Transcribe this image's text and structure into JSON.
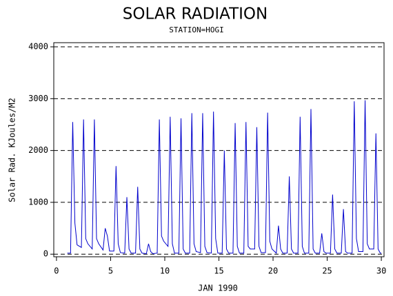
{
  "chart_data": {
    "type": "line",
    "title": "SOLAR RADIATION",
    "subtitle": "STATION=HOGI",
    "x_label": "JAN 1990",
    "y_label": "Solar Rad. KJoules/M2",
    "xlim": [
      -0.25,
      30.25
    ],
    "xticks": [
      0,
      5,
      10,
      15,
      20,
      25,
      30
    ],
    "ylim": [
      -50,
      4080
    ],
    "yticks": [
      0,
      1000,
      2000,
      3000,
      4000
    ],
    "grid": true,
    "series": [
      {
        "name": "Solar Rad",
        "color": "#0000cc",
        "x": [
          1,
          1.3,
          1.5,
          1.7,
          1.9,
          2.3,
          2.5,
          2.7,
          2.9,
          3.3,
          3.5,
          3.7,
          3.9,
          4.3,
          4.5,
          4.7,
          4.9,
          5.3,
          5.5,
          5.7,
          5.9,
          6.3,
          6.5,
          6.7,
          6.9,
          7.3,
          7.5,
          7.7,
          7.9,
          8.3,
          8.5,
          8.7,
          8.9,
          9.3,
          9.5,
          9.7,
          9.9,
          10.3,
          10.5,
          10.7,
          10.9,
          11.3,
          11.5,
          11.7,
          11.9,
          12.3,
          12.5,
          12.7,
          12.9,
          13.3,
          13.5,
          13.7,
          13.9,
          14.3,
          14.5,
          14.7,
          14.9,
          15.3,
          15.5,
          15.7,
          15.9,
          16.3,
          16.5,
          16.7,
          16.9,
          17.3,
          17.5,
          17.7,
          17.9,
          18.3,
          18.5,
          18.7,
          18.9,
          19.3,
          19.5,
          19.7,
          19.9,
          20.3,
          20.5,
          20.7,
          20.9,
          21.3,
          21.5,
          21.7,
          21.9,
          22.3,
          22.5,
          22.7,
          22.9,
          23.3,
          23.5,
          23.7,
          23.9,
          24.3,
          24.5,
          24.7,
          24.9,
          25.3,
          25.5,
          25.7,
          25.9,
          26.3,
          26.5,
          26.7,
          26.9,
          27.3,
          27.5,
          27.7,
          27.9,
          28.3,
          28.5,
          28.7,
          28.9,
          29.3,
          29.5,
          29.7,
          29.9,
          30
        ],
        "values": [
          20,
          20,
          2550,
          600,
          180,
          130,
          2600,
          300,
          200,
          100,
          2600,
          300,
          200,
          80,
          500,
          350,
          60,
          60,
          1700,
          200,
          30,
          20,
          1100,
          100,
          20,
          20,
          1300,
          100,
          20,
          10,
          200,
          50,
          10,
          20,
          2600,
          350,
          250,
          150,
          2650,
          200,
          20,
          20,
          2620,
          100,
          20,
          20,
          2720,
          200,
          50,
          30,
          2720,
          150,
          30,
          20,
          2750,
          300,
          20,
          20,
          2000,
          100,
          20,
          20,
          2530,
          150,
          20,
          20,
          2550,
          150,
          100,
          100,
          2450,
          150,
          30,
          30,
          2730,
          250,
          100,
          20,
          550,
          100,
          20,
          20,
          1500,
          100,
          20,
          20,
          2650,
          150,
          20,
          20,
          2800,
          100,
          20,
          20,
          400,
          50,
          20,
          20,
          1150,
          100,
          20,
          20,
          870,
          50,
          20,
          20,
          2950,
          300,
          50,
          50,
          2970,
          200,
          100,
          100,
          2330,
          100,
          20,
          20
        ]
      }
    ]
  }
}
